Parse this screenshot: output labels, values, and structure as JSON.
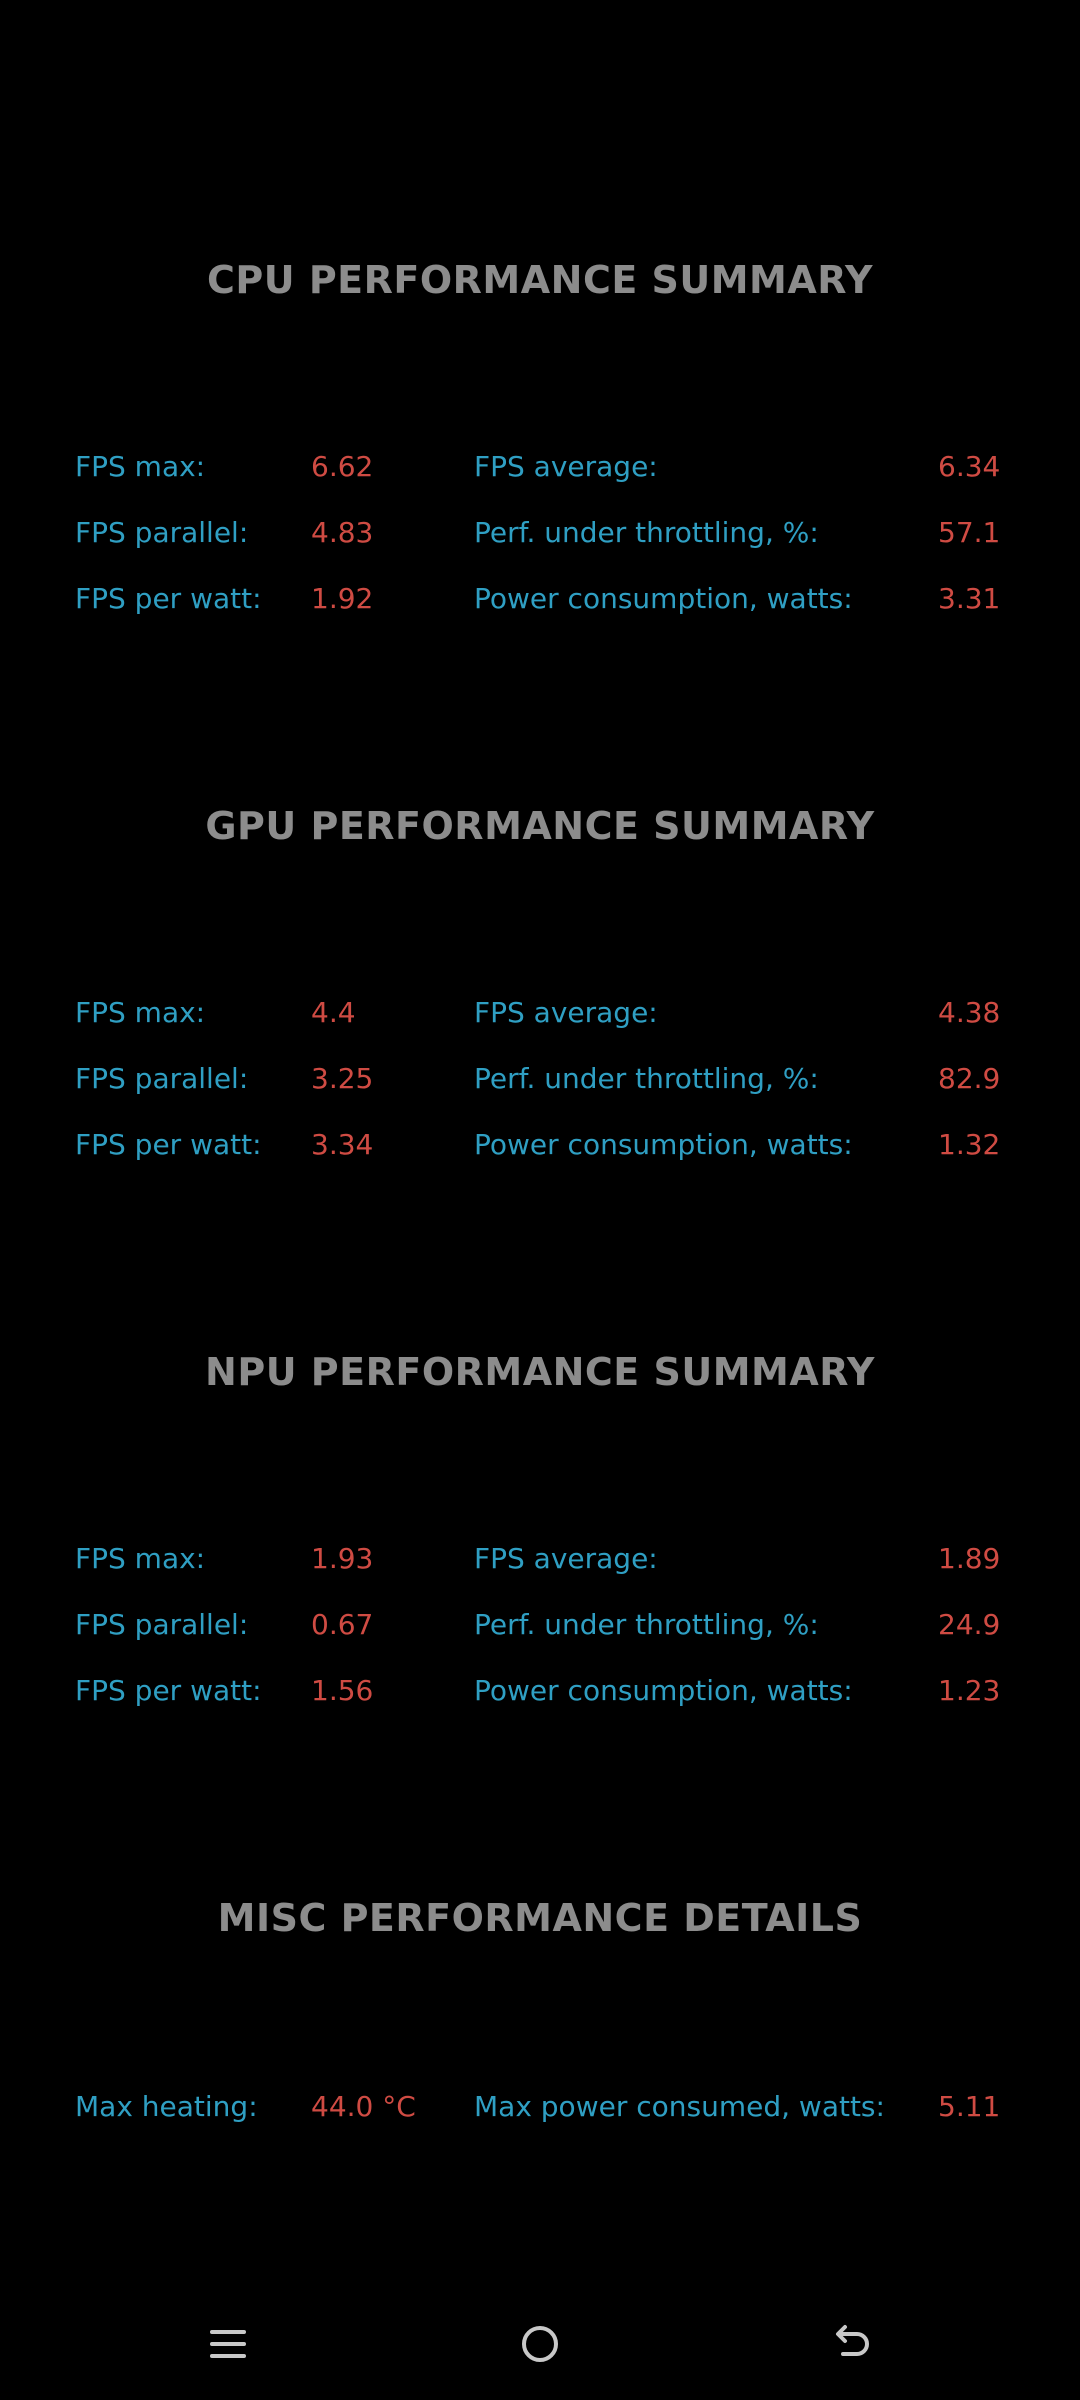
{
  "sections": [
    {
      "title": "CPU PERFORMANCE SUMMARY",
      "rows": [
        {
          "label1": "FPS max:",
          "value1": "6.62",
          "label2": "FPS average:",
          "value2": "6.34"
        },
        {
          "label1": "FPS parallel:",
          "value1": "4.83",
          "label2": "Perf. under throttling, %:",
          "value2": "57.1"
        },
        {
          "label1": "FPS per watt:",
          "value1": "1.92",
          "label2": "Power consumption, watts:",
          "value2": "3.31"
        }
      ]
    },
    {
      "title": "GPU PERFORMANCE SUMMARY",
      "rows": [
        {
          "label1": "FPS max:",
          "value1": "4.4",
          "label2": "FPS average:",
          "value2": "4.38"
        },
        {
          "label1": "FPS parallel:",
          "value1": "3.25",
          "label2": "Perf. under throttling, %:",
          "value2": "82.9"
        },
        {
          "label1": "FPS per watt:",
          "value1": "3.34",
          "label2": "Power consumption, watts:",
          "value2": "1.32"
        }
      ]
    },
    {
      "title": "NPU PERFORMANCE SUMMARY",
      "rows": [
        {
          "label1": "FPS max:",
          "value1": "1.93",
          "label2": "FPS average:",
          "value2": "1.89"
        },
        {
          "label1": "FPS parallel:",
          "value1": "0.67",
          "label2": "Perf. under throttling, %:",
          "value2": "24.9"
        },
        {
          "label1": "FPS per watt:",
          "value1": "1.56",
          "label2": "Power consumption, watts:",
          "value2": "1.23"
        }
      ]
    },
    {
      "title": "MISC PERFORMANCE DETAILS",
      "rows": [
        {
          "label1": "Max heating:",
          "value1": "44.0 °C",
          "label2": "Max power consumed, watts:",
          "value2": "5.11"
        }
      ]
    }
  ],
  "navbar": {
    "items": [
      {
        "icon": "menu-icon"
      },
      {
        "icon": "home-icon"
      },
      {
        "icon": "back-icon"
      }
    ]
  },
  "colors": {
    "background": "#000000",
    "title": "#8c8c8c",
    "label": "#2f9fc3",
    "value": "#cf4b43",
    "navbar_icon": "#c8c8c8"
  }
}
